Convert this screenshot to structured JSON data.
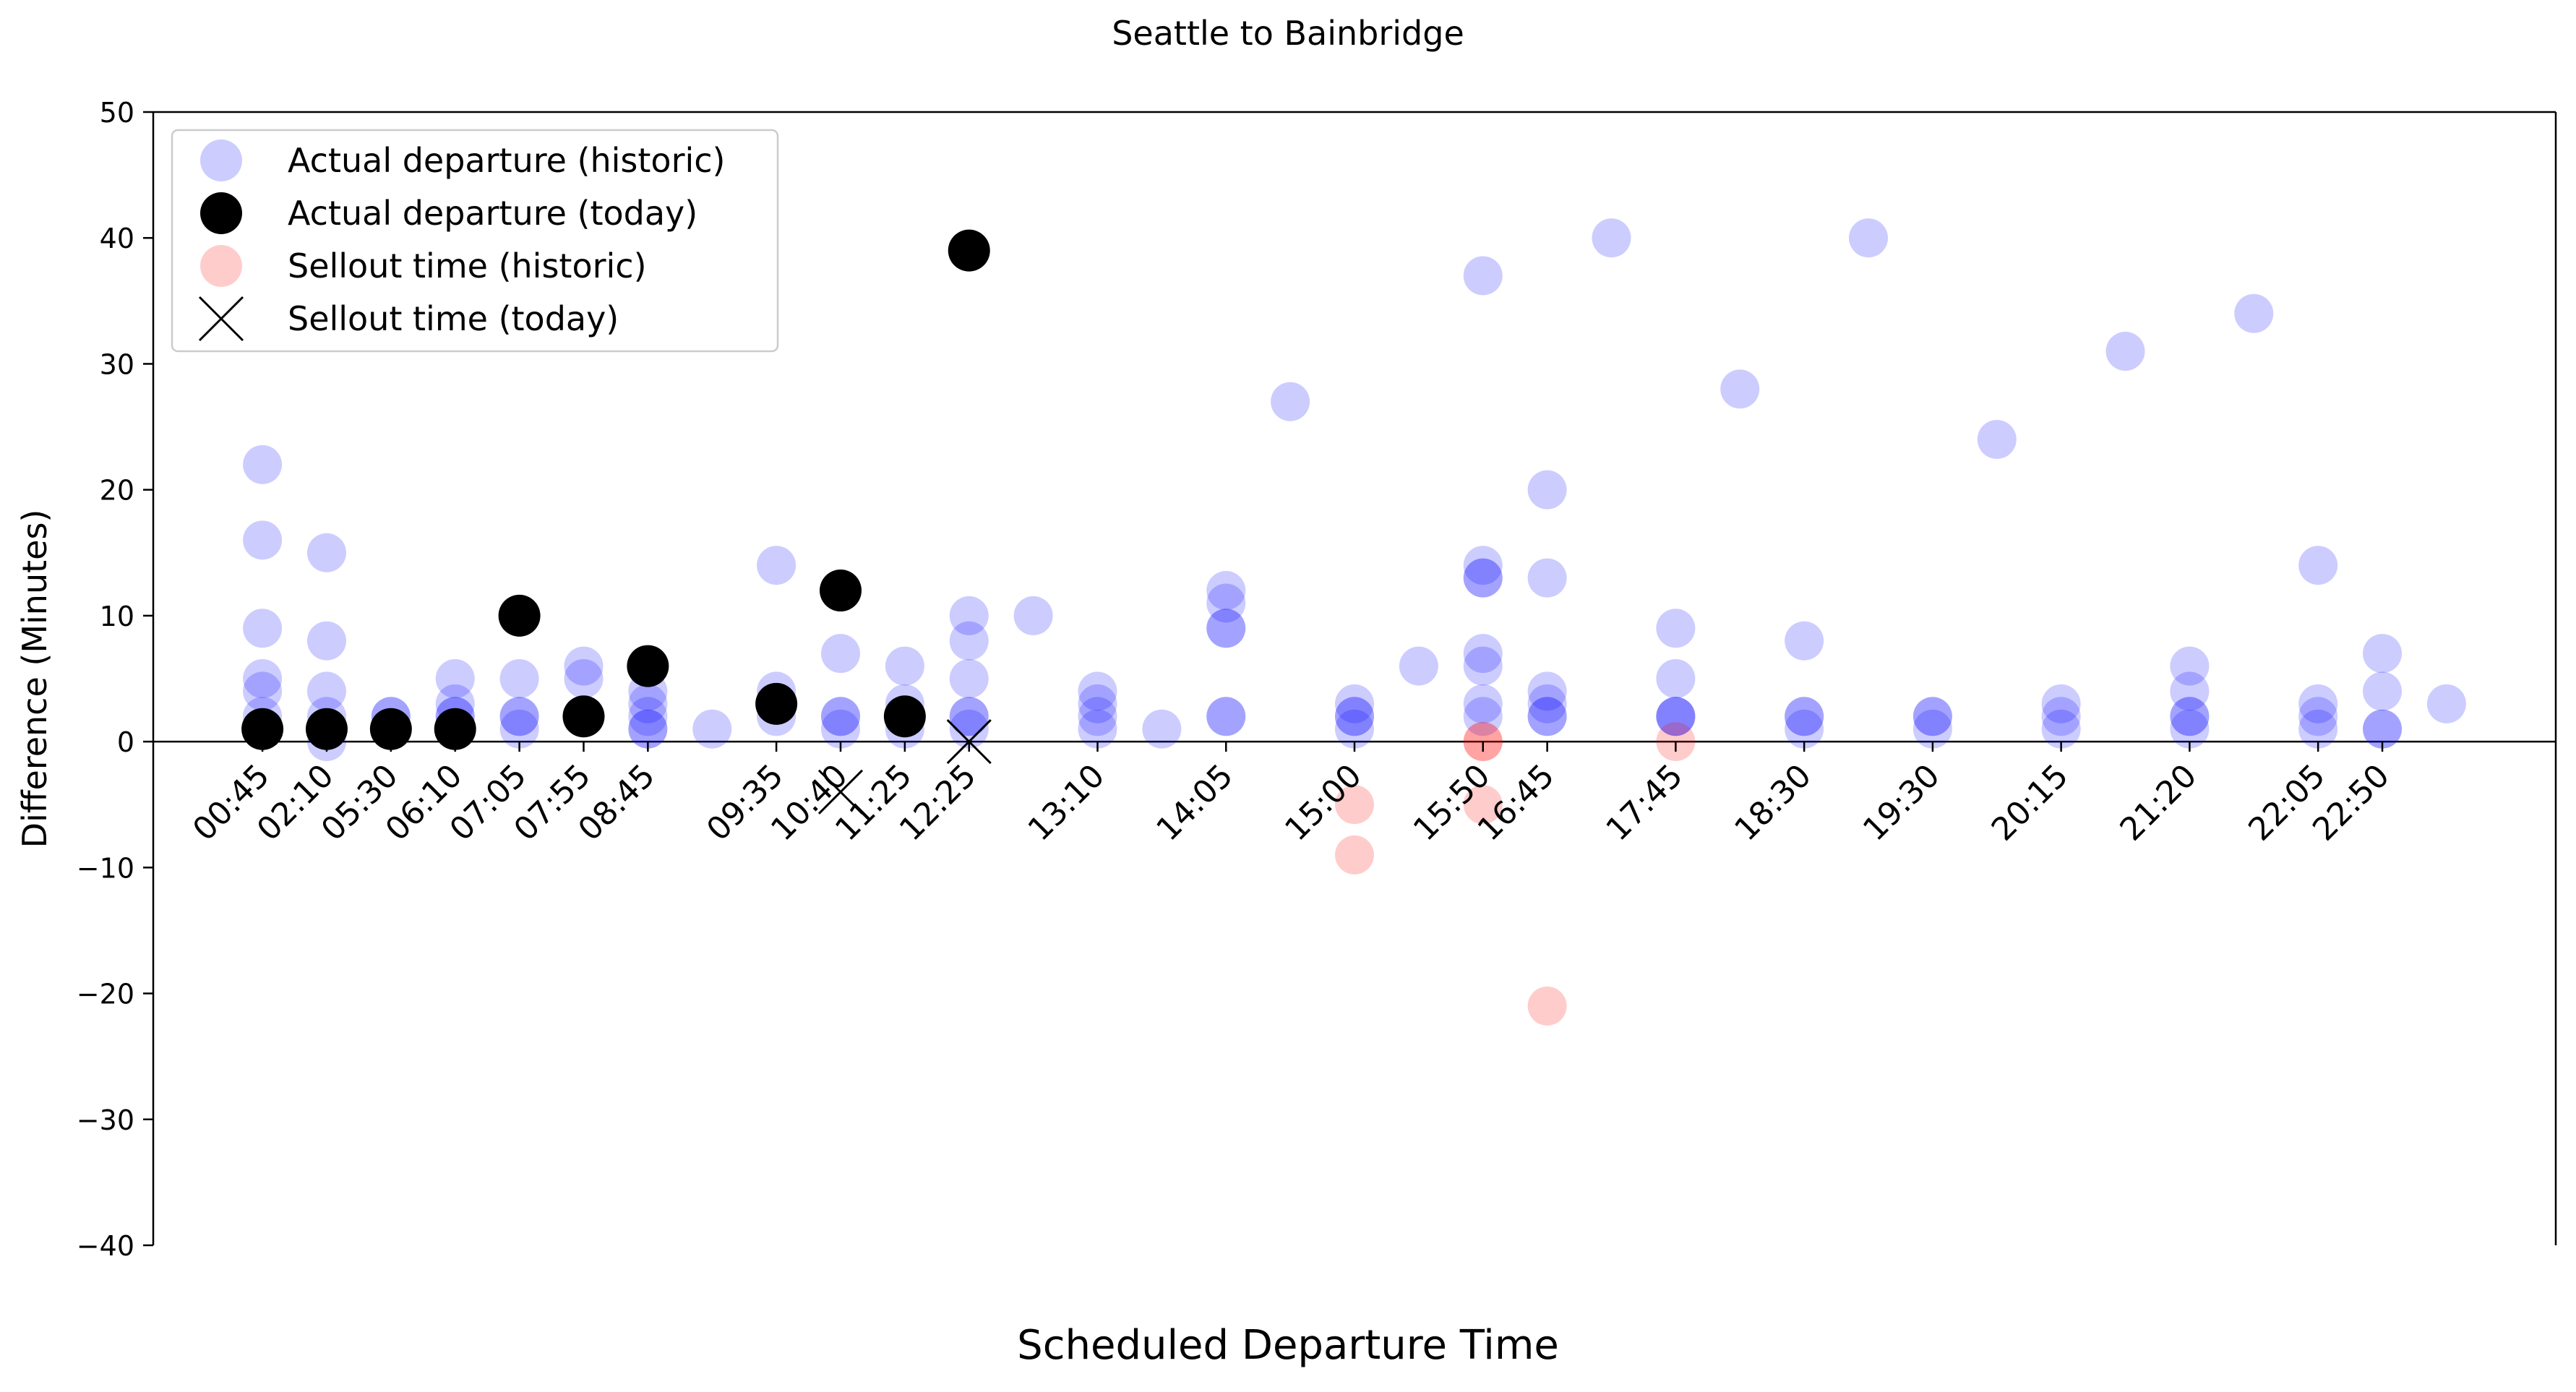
{
  "chart_data": {
    "type": "scatter",
    "title": "Seattle to Bainbridge",
    "xlabel": "Scheduled Departure Time",
    "ylabel": "Difference (Minutes)",
    "ylim": [
      -40,
      50
    ],
    "yticks": [
      -40,
      -30,
      -20,
      -10,
      0,
      10,
      20,
      30,
      40,
      50
    ],
    "categories": [
      "00:45",
      "02:10",
      "05:30",
      "06:10",
      "07:05",
      "07:55",
      "08:45",
      "09:35",
      "10:40",
      "11:25",
      "12:25",
      "13:10",
      "14:05",
      "15:00",
      "15:50",
      "16:45",
      "17:45",
      "18:30",
      "19:30",
      "20:15",
      "21:20",
      "22:05",
      "22:50"
    ],
    "xlim": [
      -1.7,
      35.7
    ],
    "xtick_positions": [
      0,
      1,
      2,
      3,
      4,
      5,
      6,
      8,
      9,
      10,
      11,
      13,
      15,
      17,
      19,
      20,
      22,
      24,
      26,
      28,
      30,
      32,
      33
    ],
    "zero_line": true,
    "legend": {
      "placement": "top-left",
      "entries": [
        {
          "label": "Actual departure (historic)",
          "marker": "circle",
          "color": "#0000ff",
          "opacity": 0.2
        },
        {
          "label": "Actual departure (today)",
          "marker": "circle",
          "color": "#000000",
          "opacity": 1
        },
        {
          "label": "Sellout time (historic)",
          "marker": "circle",
          "color": "#ff0000",
          "opacity": 0.2
        },
        {
          "label": "Sellout time (today)",
          "marker": "x",
          "color": "#000000",
          "opacity": 1
        }
      ]
    },
    "series": [
      {
        "name": "Actual departure (historic)",
        "marker": "circle",
        "color": "#0000ff",
        "opacity": 0.2,
        "points": [
          [
            0,
            22
          ],
          [
            0,
            16
          ],
          [
            0,
            9
          ],
          [
            0,
            5
          ],
          [
            0,
            4
          ],
          [
            0,
            2
          ],
          [
            0,
            1
          ],
          [
            1,
            15
          ],
          [
            1,
            8
          ],
          [
            1,
            4
          ],
          [
            1,
            2
          ],
          [
            1,
            1
          ],
          [
            1,
            0
          ],
          [
            2,
            2
          ],
          [
            2,
            2
          ],
          [
            2,
            1
          ],
          [
            2,
            1
          ],
          [
            3,
            5
          ],
          [
            3,
            3
          ],
          [
            3,
            2
          ],
          [
            3,
            2
          ],
          [
            3,
            1
          ],
          [
            4,
            5
          ],
          [
            4,
            2
          ],
          [
            4,
            2
          ],
          [
            4,
            1
          ],
          [
            5,
            6
          ],
          [
            5,
            5
          ],
          [
            5,
            2
          ],
          [
            5,
            2
          ],
          [
            6,
            4
          ],
          [
            6,
            3
          ],
          [
            6,
            2
          ],
          [
            6,
            1
          ],
          [
            6,
            1
          ],
          [
            7,
            1
          ],
          [
            8,
            14
          ],
          [
            8,
            4
          ],
          [
            8,
            3
          ],
          [
            8,
            2
          ],
          [
            9,
            7
          ],
          [
            9,
            2
          ],
          [
            9,
            2
          ],
          [
            9,
            1
          ],
          [
            10,
            6
          ],
          [
            10,
            3
          ],
          [
            10,
            2
          ],
          [
            10,
            1
          ],
          [
            11,
            10
          ],
          [
            11,
            8
          ],
          [
            11,
            5
          ],
          [
            11,
            2
          ],
          [
            11,
            2
          ],
          [
            11,
            1
          ],
          [
            12,
            10
          ],
          [
            13,
            4
          ],
          [
            13,
            3
          ],
          [
            13,
            2
          ],
          [
            13,
            1
          ],
          [
            14,
            1
          ],
          [
            15,
            12
          ],
          [
            15,
            11
          ],
          [
            15,
            9
          ],
          [
            15,
            9
          ],
          [
            15,
            2
          ],
          [
            15,
            2
          ],
          [
            16,
            27
          ],
          [
            17,
            3
          ],
          [
            17,
            2
          ],
          [
            17,
            2
          ],
          [
            17,
            1
          ],
          [
            18,
            6
          ],
          [
            19,
            37
          ],
          [
            19,
            14
          ],
          [
            19,
            13
          ],
          [
            19,
            13
          ],
          [
            19,
            7
          ],
          [
            19,
            6
          ],
          [
            19,
            3
          ],
          [
            19,
            2
          ],
          [
            20,
            20
          ],
          [
            20,
            13
          ],
          [
            20,
            4
          ],
          [
            20,
            3
          ],
          [
            20,
            2
          ],
          [
            20,
            2
          ],
          [
            21,
            40
          ],
          [
            22,
            9
          ],
          [
            22,
            5
          ],
          [
            22,
            2
          ],
          [
            22,
            2
          ],
          [
            22,
            2
          ],
          [
            23,
            28
          ],
          [
            24,
            8
          ],
          [
            24,
            2
          ],
          [
            24,
            2
          ],
          [
            24,
            1
          ],
          [
            25,
            40
          ],
          [
            26,
            2
          ],
          [
            26,
            2
          ],
          [
            26,
            1
          ],
          [
            27,
            24
          ],
          [
            28,
            3
          ],
          [
            28,
            2
          ],
          [
            28,
            1
          ],
          [
            29,
            31
          ],
          [
            30,
            6
          ],
          [
            30,
            4
          ],
          [
            30,
            2
          ],
          [
            30,
            2
          ],
          [
            30,
            1
          ],
          [
            31,
            34
          ],
          [
            32,
            14
          ],
          [
            32,
            3
          ],
          [
            32,
            2
          ],
          [
            32,
            1
          ],
          [
            33,
            7
          ],
          [
            33,
            4
          ],
          [
            33,
            1
          ],
          [
            33,
            1
          ],
          [
            34,
            3
          ]
        ]
      },
      {
        "name": "Actual departure (today)",
        "marker": "circle",
        "color": "#000000",
        "opacity": 1,
        "points": [
          [
            0,
            1
          ],
          [
            1,
            1
          ],
          [
            2,
            1
          ],
          [
            3,
            1
          ],
          [
            4,
            10
          ],
          [
            5,
            2
          ],
          [
            6,
            6
          ],
          [
            8,
            3
          ],
          [
            9,
            12
          ],
          [
            10,
            2
          ],
          [
            11,
            39
          ]
        ]
      },
      {
        "name": "Sellout time (historic)",
        "marker": "circle",
        "color": "#ff0000",
        "opacity": 0.2,
        "points": [
          [
            17,
            -5
          ],
          [
            17,
            -9
          ],
          [
            19,
            0
          ],
          [
            19,
            0
          ],
          [
            19,
            -5
          ],
          [
            20,
            -21
          ],
          [
            22,
            0
          ]
        ]
      },
      {
        "name": "Sellout time (today)",
        "marker": "x",
        "color": "#000000",
        "opacity": 1,
        "points": [
          [
            9,
            -4
          ],
          [
            11,
            0
          ]
        ]
      }
    ]
  }
}
